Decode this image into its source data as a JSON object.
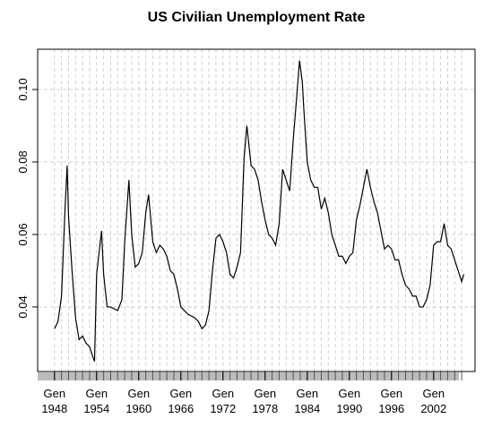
{
  "chart_data": {
    "type": "line",
    "title": "US Civilian Unemployment Rate",
    "x": [
      1948.0,
      1948.5,
      1949.0,
      1949.5,
      1949.8,
      1950.0,
      1950.5,
      1951.0,
      1951.5,
      1952.0,
      1952.5,
      1953.0,
      1953.5,
      1953.7,
      1954.0,
      1954.7,
      1955.0,
      1955.5,
      1956.0,
      1957.0,
      1957.6,
      1958.0,
      1958.6,
      1959.0,
      1959.5,
      1960.0,
      1960.5,
      1961.0,
      1961.4,
      1962.0,
      1962.5,
      1963.0,
      1963.5,
      1964.0,
      1964.5,
      1965.0,
      1965.5,
      1966.0,
      1967.0,
      1968.0,
      1968.5,
      1969.0,
      1969.5,
      1970.0,
      1970.5,
      1971.0,
      1971.5,
      1972.0,
      1972.5,
      1973.0,
      1973.5,
      1974.0,
      1974.5,
      1975.0,
      1975.4,
      1976.0,
      1976.5,
      1977.0,
      1977.5,
      1978.0,
      1978.5,
      1979.0,
      1979.5,
      1980.0,
      1980.5,
      1981.0,
      1981.5,
      1982.0,
      1982.5,
      1982.9,
      1983.3,
      1983.5,
      1984.0,
      1984.5,
      1985.0,
      1985.5,
      1986.0,
      1986.5,
      1987.0,
      1987.5,
      1988.0,
      1988.5,
      1989.0,
      1989.5,
      1990.0,
      1990.5,
      1991.0,
      1991.5,
      1992.0,
      1992.5,
      1993.0,
      1993.5,
      1994.0,
      1994.5,
      1995.0,
      1995.5,
      1996.0,
      1996.5,
      1997.0,
      1997.5,
      1998.0,
      1998.5,
      1999.0,
      1999.5,
      2000.0,
      2000.5,
      2001.0,
      2001.5,
      2002.0,
      2002.5,
      2003.0,
      2003.5,
      2004.0,
      2004.5,
      2005.0,
      2005.5,
      2006.0,
      2006.3
    ],
    "series": [
      {
        "color": "#000000",
        "values": [
          0.034,
          0.036,
          0.043,
          0.067,
          0.079,
          0.065,
          0.05,
          0.037,
          0.031,
          0.032,
          0.03,
          0.029,
          0.026,
          0.025,
          0.049,
          0.061,
          0.049,
          0.04,
          0.04,
          0.039,
          0.042,
          0.058,
          0.075,
          0.06,
          0.051,
          0.052,
          0.055,
          0.066,
          0.071,
          0.058,
          0.055,
          0.057,
          0.056,
          0.054,
          0.05,
          0.049,
          0.045,
          0.04,
          0.038,
          0.037,
          0.036,
          0.034,
          0.035,
          0.039,
          0.05,
          0.059,
          0.06,
          0.058,
          0.055,
          0.049,
          0.048,
          0.051,
          0.055,
          0.081,
          0.09,
          0.079,
          0.078,
          0.075,
          0.069,
          0.064,
          0.06,
          0.059,
          0.057,
          0.063,
          0.078,
          0.075,
          0.072,
          0.086,
          0.098,
          0.108,
          0.102,
          0.095,
          0.08,
          0.075,
          0.073,
          0.073,
          0.067,
          0.07,
          0.066,
          0.06,
          0.057,
          0.054,
          0.054,
          0.052,
          0.054,
          0.055,
          0.064,
          0.068,
          0.073,
          0.078,
          0.073,
          0.069,
          0.066,
          0.061,
          0.056,
          0.057,
          0.056,
          0.053,
          0.053,
          0.049,
          0.046,
          0.045,
          0.043,
          0.043,
          0.04,
          0.04,
          0.042,
          0.046,
          0.057,
          0.058,
          0.058,
          0.063,
          0.057,
          0.056,
          0.053,
          0.05,
          0.047,
          0.049
        ]
      }
    ],
    "xlim": [
      1945.6,
      2007.9
    ],
    "ylim": [
      0.0222,
      0.1111
    ],
    "xticks": [
      {
        "value": 1948,
        "label": "Gen 1948"
      },
      {
        "value": 1954,
        "label": "Gen 1954"
      },
      {
        "value": 1960,
        "label": "Gen 1960"
      },
      {
        "value": 1966,
        "label": "Gen 1966"
      },
      {
        "value": 1972,
        "label": "Gen 1972"
      },
      {
        "value": 1978,
        "label": "Gen 1978"
      },
      {
        "value": 1984,
        "label": "Gen 1984"
      },
      {
        "value": 1990,
        "label": "Gen 1990"
      },
      {
        "value": 1996,
        "label": "Gen 1996"
      },
      {
        "value": 2002,
        "label": "Gen 2002"
      }
    ],
    "xminorticks": [
      1948,
      1949,
      1950,
      1951,
      1952,
      1953,
      1954,
      1955,
      1956,
      1957,
      1958,
      1959,
      1960,
      1961,
      1962,
      1963,
      1964,
      1965,
      1966,
      1967,
      1968,
      1969,
      1970,
      1971,
      1972,
      1973,
      1974,
      1975,
      1976,
      1977,
      1978,
      1979,
      1980,
      1981,
      1982,
      1983,
      1984,
      1985,
      1986,
      1987,
      1988,
      1989,
      1990,
      1991,
      1992,
      1993,
      1994,
      1995,
      1996,
      1997,
      1998,
      1999,
      2000,
      2001,
      2002,
      2003,
      2004,
      2005,
      2006
    ],
    "yticks": [
      0.04,
      0.06,
      0.08,
      {
        "value": 0.1,
        "label": "0.10"
      }
    ],
    "grid": true
  }
}
